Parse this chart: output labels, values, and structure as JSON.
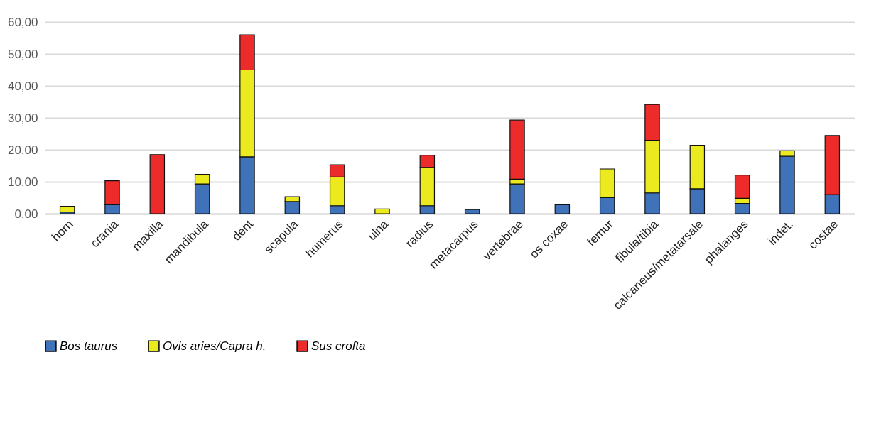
{
  "chart_data": {
    "type": "bar",
    "stacked": true,
    "categories": [
      "horn",
      "crania",
      "maxilla",
      "mandibula",
      "dent",
      "scapula",
      "humerus",
      "ulna",
      "radius",
      "metacarpus",
      "vertebrae",
      "os coxae",
      "femur",
      "fibula/tibia",
      "calcaneus/metatarsale",
      "phalanges",
      "indet.",
      "costae"
    ],
    "series": [
      {
        "name": "Bos taurus",
        "color": "#3f72b8",
        "values": [
          0.5,
          2.8,
          null,
          9.3,
          17.8,
          3.8,
          2.5,
          null,
          2.5,
          1.3,
          9.3,
          2.8,
          5,
          6.5,
          7.8,
          3.2,
          18,
          6
        ]
      },
      {
        "name": "Ovis aries/Capra h.",
        "color": "#eaea1e",
        "values": [
          1.8,
          null,
          null,
          3,
          27.2,
          1.5,
          9,
          1.5,
          12,
          null,
          1.5,
          null,
          9,
          16.5,
          13.6,
          1.6,
          1.7,
          null
        ]
      },
      {
        "name": "Sus crofta",
        "color": "#ee2b2b",
        "values": [
          null,
          7.5,
          18.5,
          null,
          11,
          null,
          3.8,
          null,
          3.8,
          null,
          18.5,
          null,
          null,
          11.2,
          null,
          7.3,
          null,
          18.5
        ]
      }
    ],
    "ylim": [
      0,
      60
    ],
    "yticks": [
      {
        "value": 0,
        "label": "0,00"
      },
      {
        "value": 10,
        "label": "10,00"
      },
      {
        "value": 20,
        "label": "20,00"
      },
      {
        "value": 30,
        "label": "30,00"
      },
      {
        "value": 40,
        "label": "40,00"
      },
      {
        "value": 50,
        "label": "50,00"
      },
      {
        "value": 60,
        "label": "60,00"
      }
    ],
    "grid": "y",
    "legend": "bottom"
  }
}
